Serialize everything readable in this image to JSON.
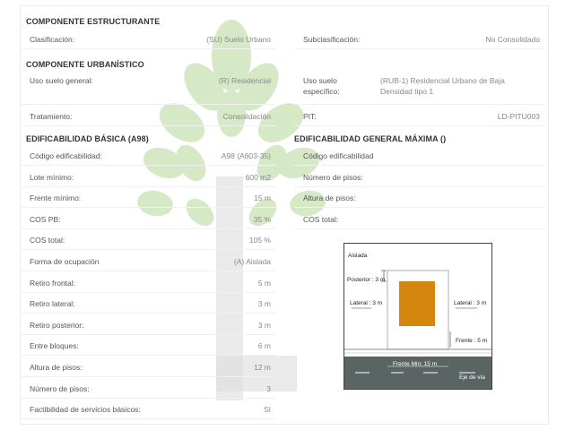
{
  "componente_estructurante": {
    "title": "COMPONENTE ESTRUCTURANTE",
    "clasificacion_label": "Clasificación:",
    "clasificacion_value": "(SU) Suelo Urbano",
    "subclasificacion_label": "Subclasificación:",
    "subclasificacion_value": "No Consolidado"
  },
  "componente_urbanistico": {
    "title": "COMPONENTE URBANÍSTICO",
    "uso_general_label": "Uso suelo general:",
    "uso_general_value": "(R) Residencial",
    "uso_especifico_label": "Uso suelo específico:",
    "uso_especifico_value": "(RUB-1) Residencial Urbano de Baja Densidad tipo 1",
    "tratamiento_label": "Tratamiento:",
    "tratamiento_value": "Consolidación",
    "pit_label": "PIT:",
    "pit_value": "LD-PITU003"
  },
  "edificabilidad_basica": {
    "title": "EDIFICABILIDAD BÁSICA (A98)",
    "rows": [
      {
        "label": "Código edificabilidad:",
        "value": "A98 (A603-35)"
      },
      {
        "label": "Lote mínimo:",
        "value": "600 m2"
      },
      {
        "label": "Frente mínimo:",
        "value": "15 m"
      },
      {
        "label": "COS PB:",
        "value": "35 %"
      },
      {
        "label": "COS total:",
        "value": "105 %"
      },
      {
        "label": "Forma de ocupación",
        "value": "(A) Aislada"
      },
      {
        "label": "Retiro frontal:",
        "value": "5 m"
      },
      {
        "label": "Retiro lateral:",
        "value": "3 m"
      },
      {
        "label": "Retiro posterior:",
        "value": "3 m"
      },
      {
        "label": "Entre bloques:",
        "value": "6 m"
      },
      {
        "label": "Altura de pisos:",
        "value": "12 m"
      },
      {
        "label": "Número de pisos:",
        "value": "3"
      },
      {
        "label": "Factibilidad de servicios básicos:",
        "value": "SI"
      }
    ]
  },
  "edificabilidad_maxima": {
    "title": "EDIFICABILIDAD GENERAL MÁXIMA ()",
    "rows": [
      {
        "label": "Código edificabilidad",
        "value": ""
      },
      {
        "label": "Número de pisos:",
        "value": ""
      },
      {
        "label": "Altura de pisos:",
        "value": ""
      },
      {
        "label": "COS total:",
        "value": ""
      }
    ]
  },
  "diagram": {
    "title": "Aislada",
    "posterior": "Posterior : 3 m",
    "lateral_left": "Lateral : 3 m",
    "lateral_right": "Lateral : 3 m",
    "frente": "Frente : 5 m",
    "frente_min": "Frente Min: 15 m",
    "eje_via": "Eje de vía",
    "building_color": "#d4860e",
    "road_color": "#5a6563"
  },
  "watermark_colors": {
    "leaf": "#c9e2b3",
    "trunk": "#d9d9d9"
  }
}
